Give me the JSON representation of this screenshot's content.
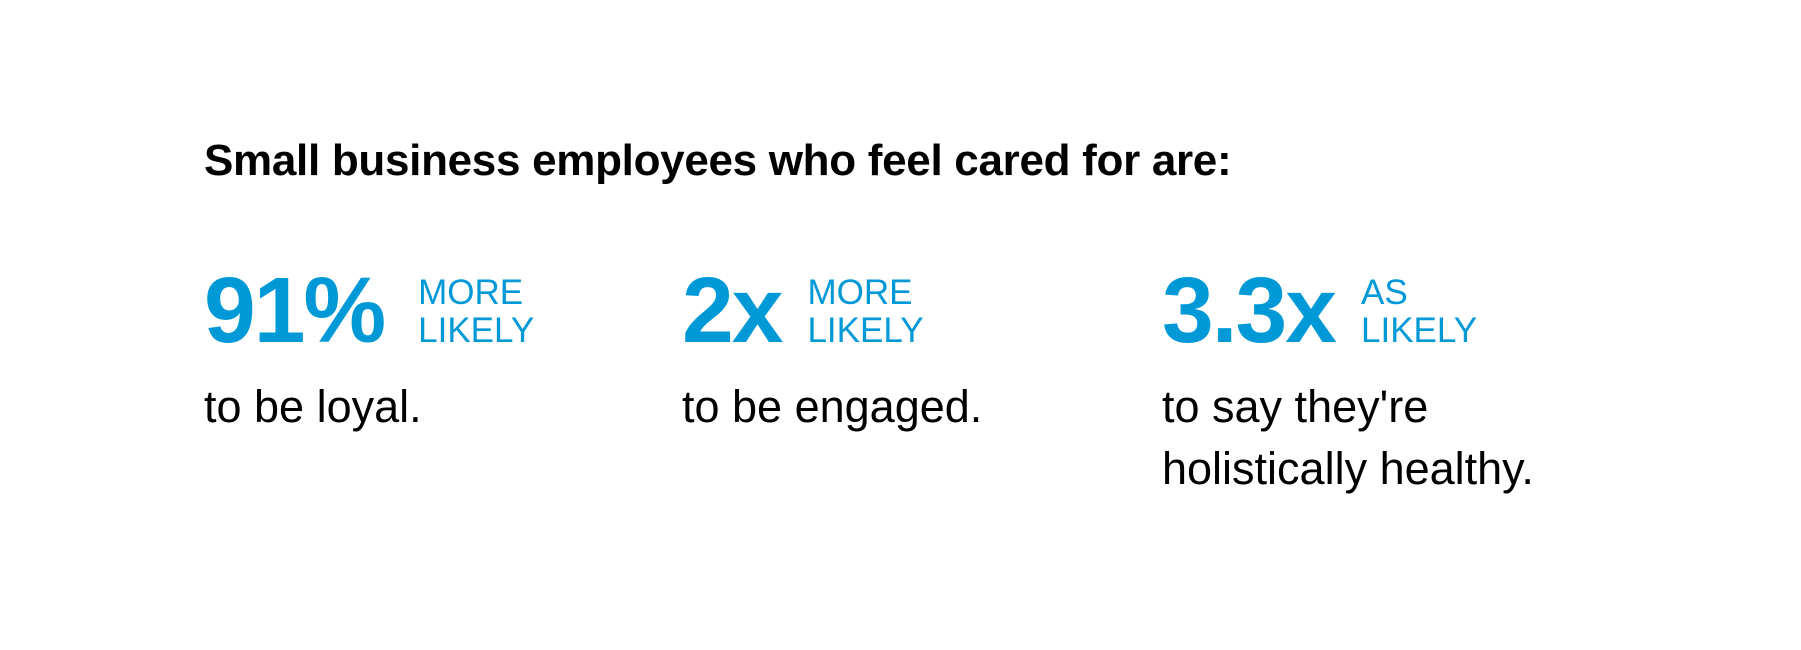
{
  "title": "Small business employees who feel cared for are:",
  "accent_color": "#0099d8",
  "stats": [
    {
      "value": "91%",
      "label_line1": "MORE",
      "label_line2": "LIKELY",
      "desc_line1": "to be loyal.",
      "desc_line2": ""
    },
    {
      "value": "2x",
      "label_line1": "MORE",
      "label_line2": "LIKELY",
      "desc_line1": "to be engaged.",
      "desc_line2": ""
    },
    {
      "value": "3.3x",
      "label_line1": "AS",
      "label_line2": "LIKELY",
      "desc_line1": "to say they're",
      "desc_line2": "holistically healthy."
    }
  ]
}
